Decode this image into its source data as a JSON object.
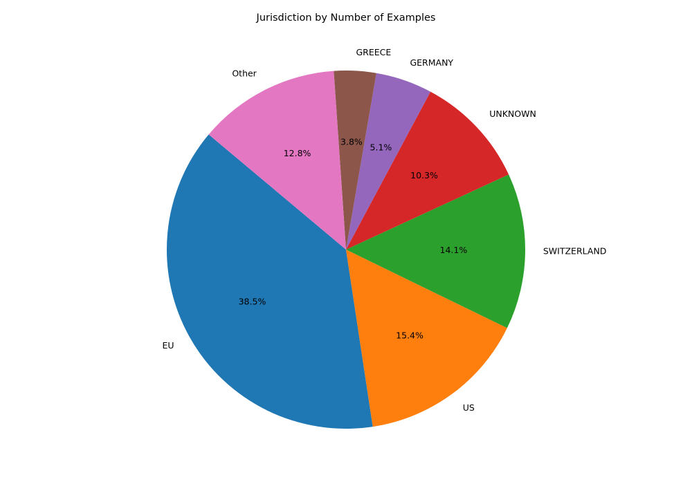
{
  "chart_data": {
    "type": "pie",
    "title": "Jurisdiction by Number of Examples",
    "categories": [
      "EU",
      "US",
      "SWITZERLAND",
      "UNKNOWN",
      "GERMANY",
      "GREECE",
      "Other"
    ],
    "values": [
      38.5,
      15.4,
      14.1,
      10.3,
      5.1,
      3.8,
      12.8
    ],
    "percent_labels": [
      "38.5%",
      "15.4%",
      "14.1%",
      "10.3%",
      "5.1%",
      "3.8%",
      "12.8%"
    ],
    "colors": [
      "#1f77b4",
      "#ff7f0e",
      "#2ca02c",
      "#d62728",
      "#9467bd",
      "#8c564b",
      "#e377c2"
    ],
    "start_angle_deg": 140,
    "direction": "counterclockwise",
    "legend": "none"
  }
}
